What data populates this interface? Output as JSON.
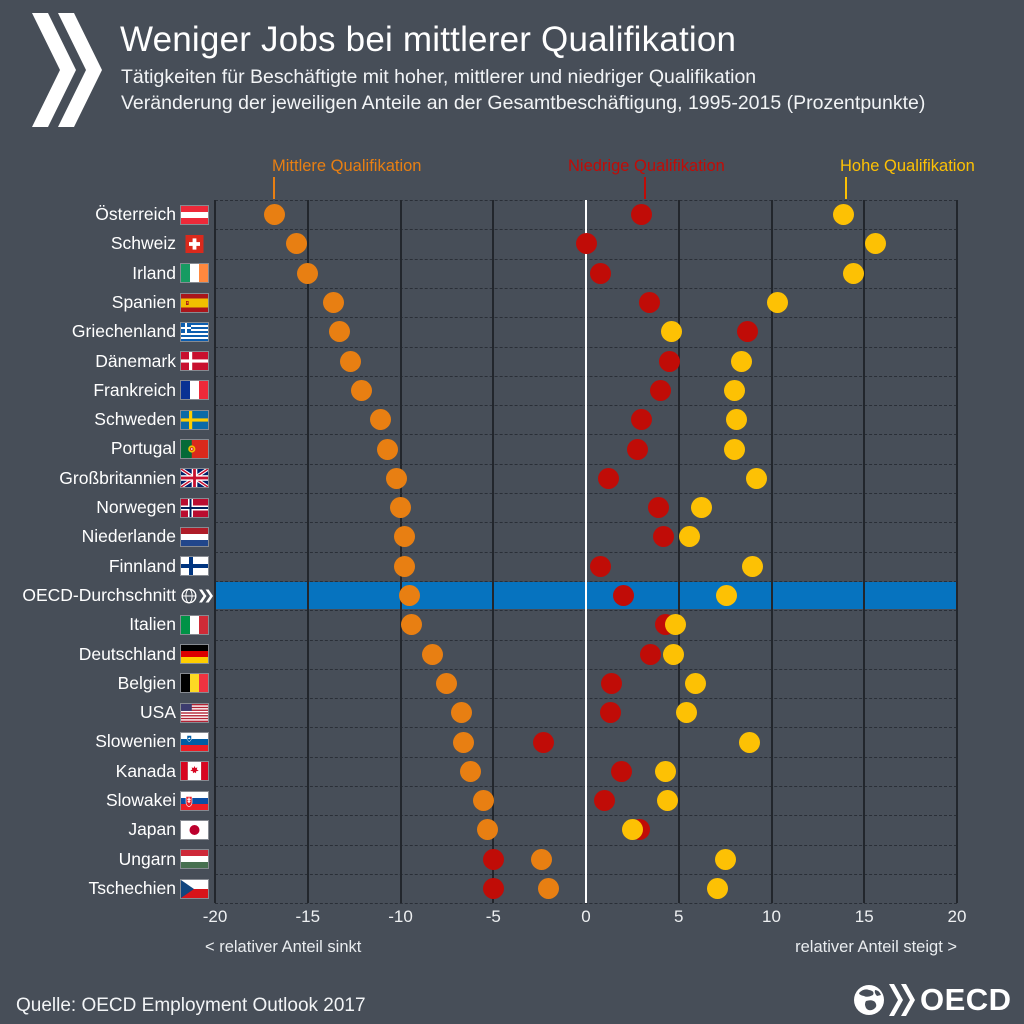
{
  "header": {
    "title": "Weniger Jobs bei mittlerer Qualifikation",
    "subtitle_line1": "Tätigkeiten für Beschäftigte mit hoher, mittlerer und niedriger Qualifikation",
    "subtitle_line2": "Veränderung der jeweiligen Anteile an der Gesamtbeschäftigung, 1995-2015 (Prozentpunkte)",
    "logo": "oecd-chevrons"
  },
  "chart_data": {
    "type": "scatter",
    "title": "Weniger Jobs bei mittlerer Qualifikation",
    "period": "1995-2015",
    "unit": "Prozentpunkte",
    "xlim": [
      -20,
      20
    ],
    "x_ticks": [
      -20,
      -15,
      -10,
      -5,
      0,
      5,
      10,
      15,
      20
    ],
    "axis_note_left": "< relativer Anteil sinkt",
    "axis_note_right": "relativer Anteil steigt >",
    "grid": true,
    "zero_line_color": "#ffffff",
    "highlight_row_color": "#0673bf",
    "series": [
      {
        "key": "mittlere",
        "name": "Mittlere Qualifikation",
        "color": "#e87f12"
      },
      {
        "key": "niedrige",
        "name": "Niedrige Qualifikation",
        "color": "#c00c07"
      },
      {
        "key": "hohe",
        "name": "Hohe Qualifikation",
        "color": "#fdc104"
      }
    ],
    "rows": [
      {
        "country": "Österreich",
        "flag": "at",
        "mittlere": -16.8,
        "niedrige": 3.0,
        "hohe": 13.9
      },
      {
        "country": "Schweiz",
        "flag": "ch",
        "mittlere": -15.6,
        "niedrige": 0.0,
        "hohe": 15.6
      },
      {
        "country": "Irland",
        "flag": "ie",
        "mittlere": -15.0,
        "niedrige": 0.8,
        "hohe": 14.4
      },
      {
        "country": "Spanien",
        "flag": "es",
        "mittlere": -13.6,
        "niedrige": 3.4,
        "hohe": 10.3
      },
      {
        "country": "Griechenland",
        "flag": "gr",
        "mittlere": -13.3,
        "niedrige": 8.7,
        "hohe": 4.6
      },
      {
        "country": "Dänemark",
        "flag": "dk",
        "mittlere": -12.7,
        "niedrige": 4.5,
        "hohe": 8.4
      },
      {
        "country": "Frankreich",
        "flag": "fr",
        "mittlere": -12.1,
        "niedrige": 4.0,
        "hohe": 8.0
      },
      {
        "country": "Schweden",
        "flag": "se",
        "mittlere": -11.1,
        "niedrige": 3.0,
        "hohe": 8.1
      },
      {
        "country": "Portugal",
        "flag": "pt",
        "mittlere": -10.7,
        "niedrige": 2.8,
        "hohe": 8.0
      },
      {
        "country": "Großbritannien",
        "flag": "gb",
        "mittlere": -10.2,
        "niedrige": 1.2,
        "hohe": 9.2
      },
      {
        "country": "Norwegen",
        "flag": "no",
        "mittlere": -10.0,
        "niedrige": 3.9,
        "hohe": 6.2
      },
      {
        "country": "Niederlande",
        "flag": "nl",
        "mittlere": -9.8,
        "niedrige": 4.2,
        "hohe": 5.6
      },
      {
        "country": "Finnland",
        "flag": "fi",
        "mittlere": -9.8,
        "niedrige": 0.8,
        "hohe": 9.0
      },
      {
        "country": "OECD-Durchschnitt",
        "flag": "oecd",
        "mittlere": -9.5,
        "niedrige": 2.0,
        "hohe": 7.6,
        "highlight": true
      },
      {
        "country": "Italien",
        "flag": "it",
        "mittlere": -9.4,
        "niedrige": 4.3,
        "hohe": 4.8
      },
      {
        "country": "Deutschland",
        "flag": "de",
        "mittlere": -8.3,
        "niedrige": 3.5,
        "hohe": 4.7
      },
      {
        "country": "Belgien",
        "flag": "be",
        "mittlere": -7.5,
        "niedrige": 1.4,
        "hohe": 5.9
      },
      {
        "country": "USA",
        "flag": "us",
        "mittlere": -6.7,
        "niedrige": 1.3,
        "hohe": 5.4
      },
      {
        "country": "Slowenien",
        "flag": "si",
        "mittlere": -6.6,
        "niedrige": -2.3,
        "hohe": 8.8
      },
      {
        "country": "Kanada",
        "flag": "ca",
        "mittlere": -6.2,
        "niedrige": 1.9,
        "hohe": 4.3
      },
      {
        "country": "Slowakei",
        "flag": "sk",
        "mittlere": -5.5,
        "niedrige": 1.0,
        "hohe": 4.4
      },
      {
        "country": "Japan",
        "flag": "jp",
        "mittlere": -5.3,
        "niedrige": 2.9,
        "hohe": 2.5
      },
      {
        "country": "Ungarn",
        "flag": "hu",
        "mittlere": -2.4,
        "niedrige": -5.0,
        "hohe": 7.5
      },
      {
        "country": "Tschechien",
        "flag": "cz",
        "mittlere": -2.0,
        "niedrige": -5.0,
        "hohe": 7.1
      }
    ]
  },
  "footer": {
    "source": "Quelle: OECD Employment Outlook 2017",
    "logo_text": "OECD"
  },
  "colors": {
    "background": "#474e58",
    "grid_line": "#22262c",
    "row_divider": "#2a2f37",
    "text": "#ffffff"
  }
}
